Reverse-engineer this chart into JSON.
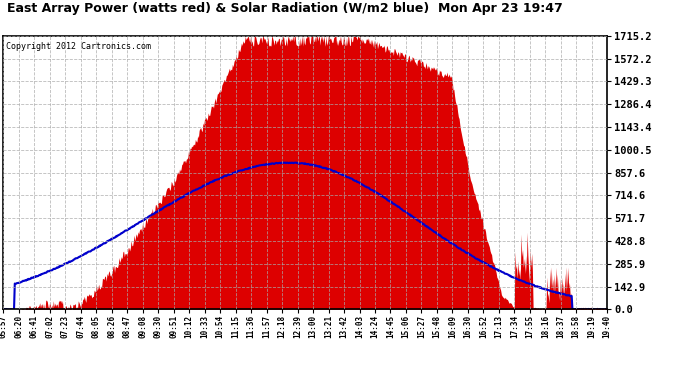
{
  "title": "East Array Power (watts red) & Solar Radiation (W/m2 blue)  Mon Apr 23 19:47",
  "copyright": "Copyright 2012 Cartronics.com",
  "background_color": "#ffffff",
  "plot_bg_color": "#ffffff",
  "grid_color": "#aaaaaa",
  "y_ticks": [
    0.0,
    142.9,
    285.9,
    428.8,
    571.7,
    714.6,
    857.6,
    1000.5,
    1143.4,
    1286.4,
    1429.3,
    1572.2,
    1715.2
  ],
  "x_labels": [
    "05:57",
    "06:20",
    "06:41",
    "07:02",
    "07:23",
    "07:44",
    "08:05",
    "08:26",
    "08:47",
    "09:08",
    "09:30",
    "09:51",
    "10:12",
    "10:33",
    "10:54",
    "11:15",
    "11:36",
    "11:57",
    "12:18",
    "12:39",
    "13:00",
    "13:21",
    "13:42",
    "14:03",
    "14:24",
    "14:45",
    "15:06",
    "15:27",
    "15:48",
    "16:09",
    "16:30",
    "16:52",
    "17:13",
    "17:34",
    "17:55",
    "18:16",
    "18:37",
    "18:58",
    "19:19",
    "19:40"
  ],
  "n_points": 800,
  "ymax": 1715.2,
  "fill_color": "#dd0000",
  "line_color": "#0000cc",
  "line_width": 1.5,
  "solar_peak": 920,
  "solar_peak_t": 390
}
